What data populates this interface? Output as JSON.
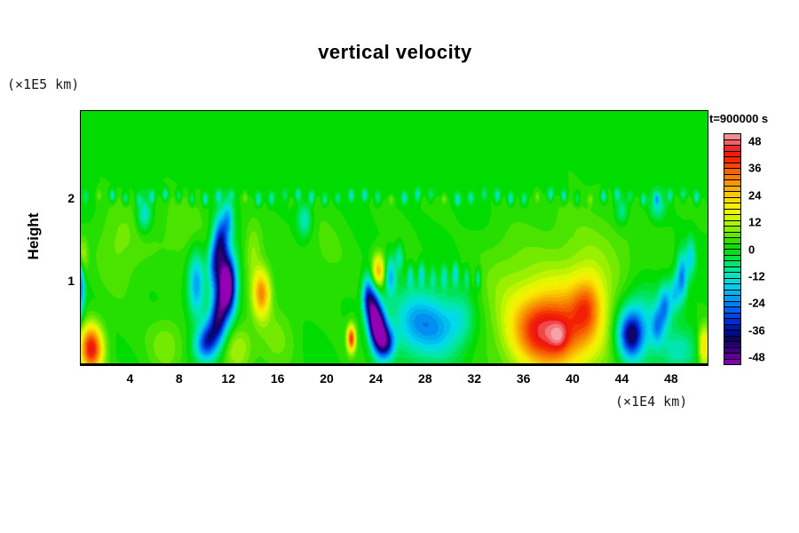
{
  "header": {
    "title": "vertical velocity"
  },
  "axes": {
    "y_unit": "(×1E5 km)",
    "x_unit": "(×1E4 km)",
    "y_label": "Height",
    "x_ticks": [
      4,
      8,
      12,
      16,
      20,
      24,
      28,
      32,
      36,
      40,
      44,
      48
    ],
    "y_ticks": [
      1,
      2
    ]
  },
  "colorbar": {
    "time_label": "t=900000 s",
    "ticks": [
      48,
      36,
      24,
      12,
      0,
      -12,
      -24,
      -36,
      -48
    ],
    "cells": 40,
    "value_range": [
      -51.5,
      51.5
    ]
  },
  "chart_data": {
    "type": "heatmap",
    "title": "vertical velocity",
    "xlabel": "(×1E4 km)",
    "ylabel": "Height (×1E5 km)",
    "time_label": "t=900000 s",
    "xlim": [
      0,
      50.97
    ],
    "ylim": [
      0,
      3.054
    ],
    "x_ticks": [
      4,
      8,
      12,
      16,
      20,
      24,
      28,
      32,
      36,
      40,
      44,
      48
    ],
    "y_ticks": [
      1,
      2
    ],
    "value_units": "velocity contour levels, range -51.5 to +51.5",
    "quantize_step": 2.575,
    "quiet_layer": {
      "top_of_convection_y": 2.06,
      "blend_width": 0.07,
      "value": 0
    },
    "background_convection": {
      "base": 1.0,
      "ripple_amp": 1.4
    },
    "colormap_stops": [
      [
        -51.5,
        "#9400B4"
      ],
      [
        -47.5,
        "#5E0096"
      ],
      [
        -43.5,
        "#2E006E"
      ],
      [
        -39.5,
        "#080468"
      ],
      [
        -35.5,
        "#0012A4"
      ],
      [
        -31.5,
        "#0032DC"
      ],
      [
        -27.5,
        "#005CEE"
      ],
      [
        -23.5,
        "#008CF2"
      ],
      [
        -19.5,
        "#00B4F0"
      ],
      [
        -15.5,
        "#00D8EC"
      ],
      [
        -11.5,
        "#00E6C0"
      ],
      [
        -7.5,
        "#00E684"
      ],
      [
        -3.5,
        "#00E23C"
      ],
      [
        0,
        "#00DC00"
      ],
      [
        4,
        "#38E200"
      ],
      [
        8,
        "#78EC00"
      ],
      [
        12,
        "#B4F400"
      ],
      [
        16,
        "#E6F800"
      ],
      [
        20,
        "#F8EE00"
      ],
      [
        24,
        "#F8CC00"
      ],
      [
        28,
        "#F8A600"
      ],
      [
        32,
        "#F88000"
      ],
      [
        36,
        "#F85800"
      ],
      [
        40,
        "#F42800"
      ],
      [
        44,
        "#EE1414"
      ],
      [
        48,
        "#F26A6E"
      ],
      [
        51.5,
        "#F6A2A8"
      ]
    ],
    "features": [
      {
        "x": 11.9,
        "y": 0.95,
        "sx": 0.5,
        "sy": 0.26,
        "a": -62
      },
      {
        "x": 10.9,
        "y": 1.2,
        "sx": 0.4,
        "sy": 0.22,
        "a": -26
      },
      {
        "x": 11.4,
        "y": 1.5,
        "sx": 0.4,
        "sy": 0.22,
        "a": -30
      },
      {
        "x": 12.0,
        "y": 1.75,
        "sx": 0.3,
        "sy": 0.16,
        "a": -18
      },
      {
        "x": 11.2,
        "y": 0.55,
        "sx": 0.45,
        "sy": 0.22,
        "a": -34
      },
      {
        "x": 10.5,
        "y": 0.32,
        "sx": 0.5,
        "sy": 0.18,
        "a": -26
      },
      {
        "x": 9.4,
        "y": 0.95,
        "sx": 0.45,
        "sy": 0.28,
        "a": -22
      },
      {
        "x": 9.9,
        "y": 0.22,
        "sx": 0.55,
        "sy": 0.14,
        "a": -18
      },
      {
        "x": 14.7,
        "y": 0.85,
        "sx": 0.5,
        "sy": 0.2,
        "a": 29
      },
      {
        "x": 0.85,
        "y": 0.18,
        "sx": 0.65,
        "sy": 0.2,
        "a": 42
      },
      {
        "x": 5.15,
        "y": 1.8,
        "sx": 0.4,
        "sy": 0.14,
        "a": -16
      },
      {
        "x": 18.2,
        "y": 1.74,
        "sx": 0.4,
        "sy": 0.14,
        "a": -14
      },
      {
        "x": 0.0,
        "y": 0.95,
        "sx": 0.22,
        "sy": 0.26,
        "a": -26
      },
      {
        "x": 0.1,
        "y": 1.28,
        "sx": 0.28,
        "sy": 0.16,
        "a": 15
      },
      {
        "x": 7.0,
        "y": 0.22,
        "sx": 1.1,
        "sy": 0.26,
        "a": 8
      },
      {
        "x": 3.0,
        "y": 1.45,
        "sx": 1.4,
        "sy": 0.4,
        "a": 6
      },
      {
        "x": 12.8,
        "y": 0.18,
        "sx": 0.8,
        "sy": 0.2,
        "a": 10
      },
      {
        "x": 14.0,
        "y": 1.35,
        "sx": 0.5,
        "sy": 0.25,
        "a": 8
      },
      {
        "x": 24.2,
        "y": 1.12,
        "sx": 0.36,
        "sy": 0.14,
        "a": 26
      },
      {
        "x": 23.3,
        "y": 0.8,
        "sx": 0.3,
        "sy": 0.18,
        "a": -28
      },
      {
        "x": 23.8,
        "y": 0.6,
        "sx": 0.35,
        "sy": 0.22,
        "a": -42
      },
      {
        "x": 24.3,
        "y": 0.4,
        "sx": 0.4,
        "sy": 0.2,
        "a": -48
      },
      {
        "x": 24.9,
        "y": 0.25,
        "sx": 0.45,
        "sy": 0.14,
        "a": -32
      },
      {
        "x": 25.2,
        "y": 1.05,
        "sx": 0.3,
        "sy": 0.16,
        "a": -20
      },
      {
        "x": 25.9,
        "y": 1.28,
        "sx": 0.22,
        "sy": 0.11,
        "a": -13
      },
      {
        "x": 27.2,
        "y": 0.5,
        "sx": 1.4,
        "sy": 0.28,
        "a": -20
      },
      {
        "x": 29.3,
        "y": 0.42,
        "sx": 1.2,
        "sy": 0.26,
        "a": -14
      },
      {
        "x": 31.0,
        "y": 0.55,
        "sx": 0.8,
        "sy": 0.22,
        "a": -9
      },
      {
        "x": 22.0,
        "y": 0.3,
        "sx": 0.24,
        "sy": 0.11,
        "a": 38
      },
      {
        "x": 38.8,
        "y": 0.38,
        "sx": 2.3,
        "sy": 0.38,
        "a": 34
      },
      {
        "x": 37.0,
        "y": 0.4,
        "sx": 1.5,
        "sy": 0.28,
        "a": 16
      },
      {
        "x": 38.9,
        "y": 0.32,
        "sx": 0.55,
        "sy": 0.13,
        "a": 10
      },
      {
        "x": 41.2,
        "y": 0.7,
        "sx": 0.9,
        "sy": 0.26,
        "a": 20
      },
      {
        "x": 41.5,
        "y": 1.2,
        "sx": 2.6,
        "sy": 0.5,
        "a": 8
      },
      {
        "x": 34.5,
        "y": 1.0,
        "sx": 2.0,
        "sy": 0.45,
        "a": 6
      },
      {
        "x": 44.7,
        "y": 0.33,
        "sx": 0.7,
        "sy": 0.2,
        "a": -34
      },
      {
        "x": 45.5,
        "y": 0.5,
        "sx": 1.2,
        "sy": 0.3,
        "a": -16
      },
      {
        "x": 46.9,
        "y": 0.45,
        "sx": 0.35,
        "sy": 0.16,
        "a": -18
      },
      {
        "x": 47.5,
        "y": 0.7,
        "sx": 0.35,
        "sy": 0.18,
        "a": -22
      },
      {
        "x": 48.3,
        "y": 0.85,
        "sx": 0.3,
        "sy": 0.16,
        "a": -16
      },
      {
        "x": 48.9,
        "y": 1.05,
        "sx": 0.3,
        "sy": 0.2,
        "a": -26
      },
      {
        "x": 49.6,
        "y": 1.28,
        "sx": 0.26,
        "sy": 0.16,
        "a": -16
      },
      {
        "x": 50.7,
        "y": 0.2,
        "sx": 0.35,
        "sy": 0.18,
        "a": 22
      },
      {
        "x": 48.5,
        "y": 0.15,
        "sx": 1.0,
        "sy": 0.18,
        "a": -12
      },
      {
        "x": 44.0,
        "y": 1.85,
        "sx": 0.35,
        "sy": 0.11,
        "a": -11
      },
      {
        "x": 46.9,
        "y": 1.9,
        "sx": 0.45,
        "sy": 0.12,
        "a": -12
      },
      {
        "x": 20.0,
        "y": 1.3,
        "sx": 1.5,
        "sy": 0.45,
        "a": 4
      },
      {
        "x": 8.5,
        "y": 1.6,
        "sx": 1.6,
        "sy": 0.35,
        "a": 5
      },
      {
        "x": 16.0,
        "y": 0.3,
        "sx": 1.2,
        "sy": 0.3,
        "a": 6
      }
    ],
    "fan_dashes": {
      "x0": 26.8,
      "dx": 0.92,
      "count": 7,
      "y": 1.05,
      "sx": 0.16,
      "sy": 0.09,
      "a": -13
    },
    "boundary_row": {
      "x0": 0.4,
      "dx": 1.08,
      "count": 47,
      "y": 2.01,
      "sx": 0.15,
      "sy": 0.05,
      "a_base": -7,
      "a_var": 9,
      "a_warm": 6
    }
  },
  "colors": {
    "background": "#ffffff",
    "axis": "#000000",
    "quiet_green": "#00DC00"
  }
}
